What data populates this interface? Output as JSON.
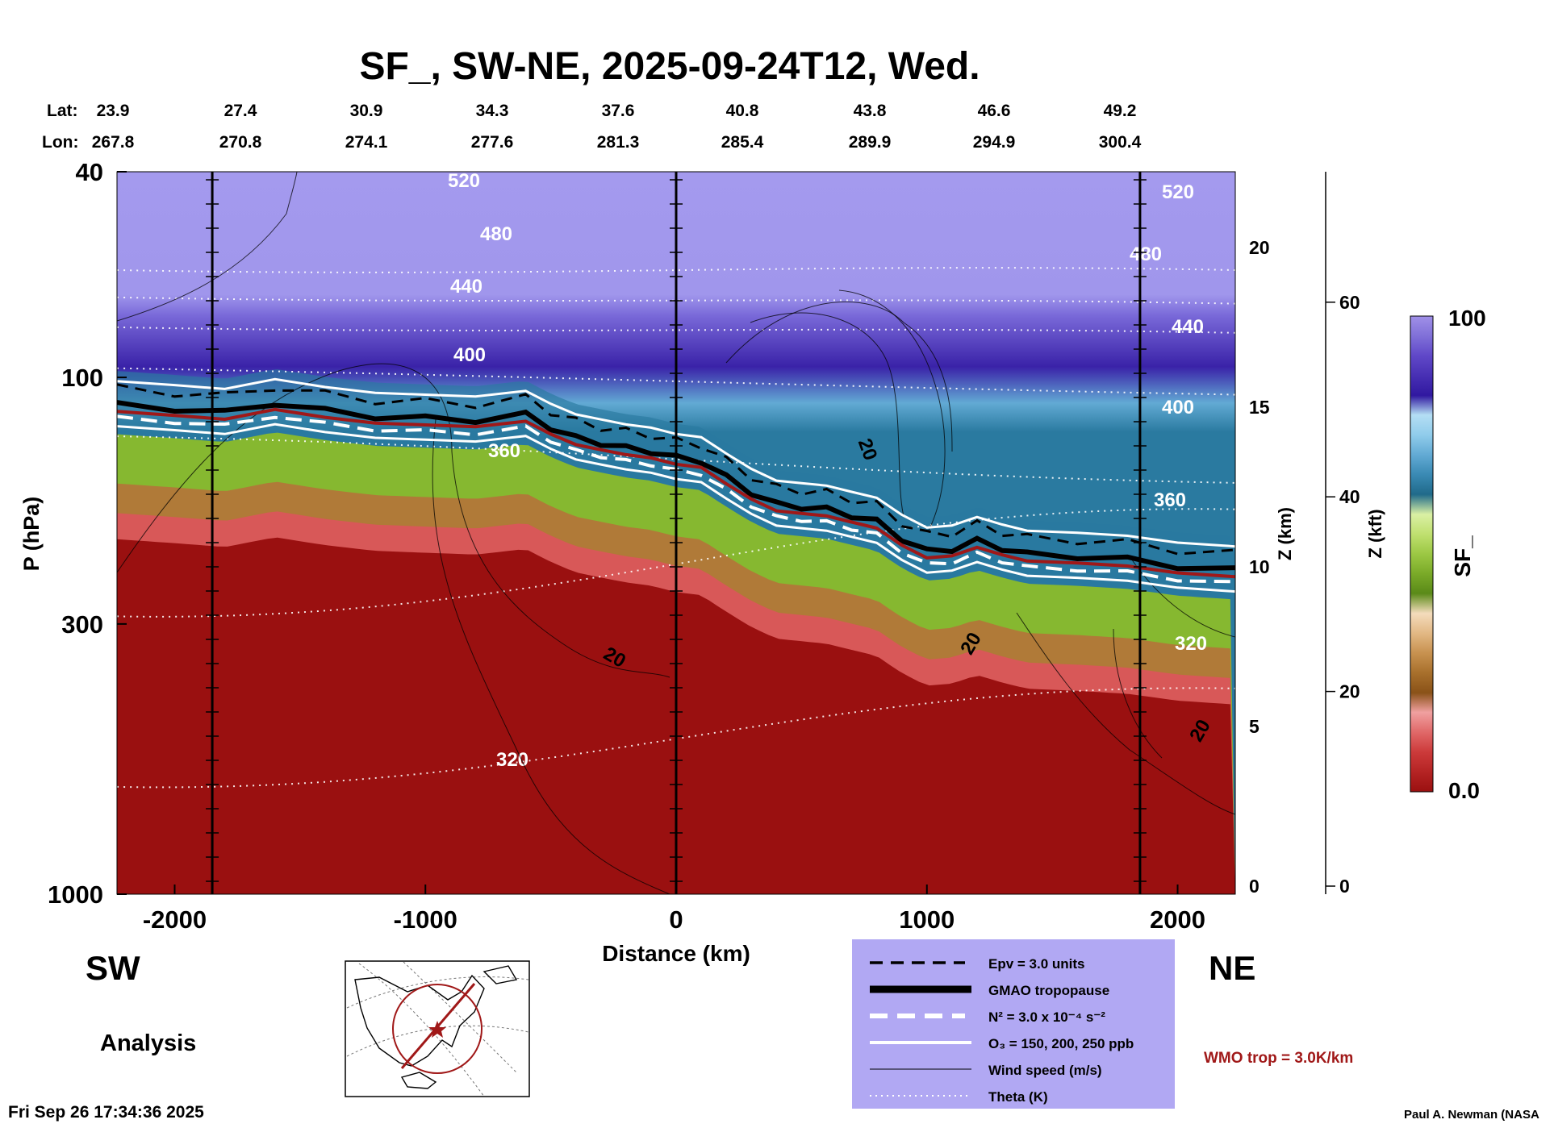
{
  "chart_data": {
    "type": "heatmap",
    "title": "SF_, SW-NE, 2025-09-24T12, Wed.",
    "xlabel": "Distance (km)",
    "ylabel": "P (hPa)",
    "y2label": "Z (km)",
    "y3label": "Z (kft)",
    "colorbar_label": "SF_",
    "colorbar_max_label": "100",
    "colorbar_min_label": "0.0",
    "colorbar_range": [
      0,
      100
    ],
    "colorbar_colors": [
      "#9a1010",
      "#b52424",
      "#cc3a3a",
      "#e06868",
      "#f0a0a0",
      "#8a5218",
      "#a8702c",
      "#c89250",
      "#e2b884",
      "#f4dcbc",
      "#5a8a18",
      "#7aaa28",
      "#9cc844",
      "#c0e070",
      "#daf0a4",
      "#206a8a",
      "#3a8ab4",
      "#62aad4",
      "#90cceb",
      "#b4def4",
      "#3018a0",
      "#4830b4",
      "#6048c8",
      "#8070d8",
      "#a090e8"
    ],
    "xlim": [
      -2230,
      2230
    ],
    "x_ticks": [
      "-2000",
      "-1000",
      "0",
      "1000",
      "2000"
    ],
    "y_scale": "log",
    "ylim": [
      1000,
      40
    ],
    "y_ticks": [
      "40",
      "100",
      "300",
      "1000"
    ],
    "z_km_ticks": [
      "20",
      "15",
      "10",
      "5",
      "0"
    ],
    "z_kft_ticks": [
      "60",
      "40",
      "20",
      "0"
    ],
    "lat_label": "Lat:",
    "lon_label": "Lon:",
    "latitudes": [
      "23.9",
      "27.4",
      "30.9",
      "34.3",
      "37.6",
      "40.8",
      "43.8",
      "46.6",
      "49.2"
    ],
    "longitudes": [
      "267.8",
      "270.8",
      "274.1",
      "277.6",
      "281.3",
      "285.4",
      "289.9",
      "294.9",
      "300.4"
    ],
    "vertical_lines_km": [
      -1850,
      0,
      1850
    ],
    "theta_labels": [
      "520",
      "480",
      "440",
      "400",
      "360",
      "320",
      "520",
      "480",
      "440",
      "400",
      "360",
      "320"
    ],
    "wind_labels": [
      "20",
      "20",
      "20",
      "20"
    ],
    "tropopause_p": [
      [
        -2230,
        113
      ],
      [
        -2000,
        115
      ],
      [
        -1800,
        117
      ],
      [
        -1600,
        112
      ],
      [
        -1400,
        116
      ],
      [
        -1200,
        119
      ],
      [
        -1000,
        120
      ],
      [
        -800,
        121
      ],
      [
        -600,
        118
      ],
      [
        -500,
        125
      ],
      [
        -400,
        131
      ],
      [
        -300,
        134
      ],
      [
        -200,
        137
      ],
      [
        -100,
        139
      ],
      [
        0,
        143
      ],
      [
        100,
        145
      ],
      [
        200,
        156
      ],
      [
        300,
        167
      ],
      [
        400,
        176
      ],
      [
        500,
        178
      ],
      [
        600,
        180
      ],
      [
        700,
        185
      ],
      [
        800,
        190
      ],
      [
        900,
        205
      ],
      [
        1000,
        217
      ],
      [
        1100,
        215
      ],
      [
        1200,
        207
      ],
      [
        1300,
        214
      ],
      [
        1400,
        220
      ],
      [
        1600,
        222
      ],
      [
        1800,
        225
      ],
      [
        2000,
        232
      ],
      [
        2230,
        236
      ]
    ]
  },
  "ui": {
    "sw_label": "SW",
    "ne_label": "NE",
    "analysis_label": "Analysis",
    "timestamp": "Fri Sep 26 17:34:36 2025",
    "credit": "Paul A. Newman (NASA",
    "wmo_note": "WMO trop = 3.0K/km",
    "legend": [
      {
        "label": "Epv = 3.0 units"
      },
      {
        "label": "GMAO tropopause"
      },
      {
        "label": "N² = 3.0 x 10⁻⁴ s⁻²"
      },
      {
        "label": "O₃ = 150, 200, 250 ppb"
      },
      {
        "label": "Wind speed (m/s)"
      },
      {
        "label": "Theta (K)"
      }
    ],
    "colors": {
      "legend_bg": "#b1a8f3",
      "wmo": "#a01818",
      "tropo_red": "#a01818",
      "map_circle": "#a01818"
    }
  }
}
